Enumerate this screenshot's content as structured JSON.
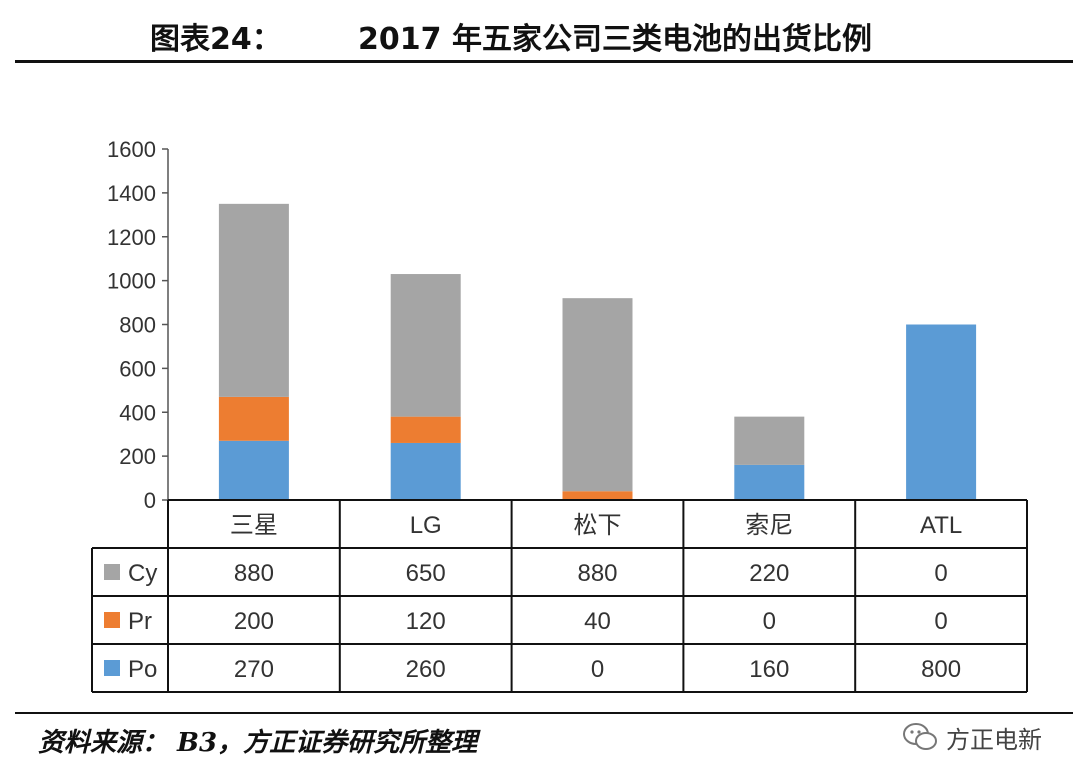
{
  "header": {
    "figure_label": "图表24：",
    "title": "2017 年五家公司三类电池的出货比例"
  },
  "footer": {
    "source": "资料来源：  B3，方正证券研究所整理",
    "brand": "方正电新"
  },
  "chart_data": {
    "type": "bar",
    "stacked": true,
    "categories": [
      "三星",
      "LG",
      "松下",
      "索尼",
      "ATL"
    ],
    "series": [
      {
        "name": "Cy",
        "values": [
          880,
          650,
          880,
          220,
          0
        ],
        "color": "#a5a5a5"
      },
      {
        "name": "Pr",
        "values": [
          200,
          120,
          40,
          0,
          0
        ],
        "color": "#ed7d31"
      },
      {
        "name": "Po",
        "values": [
          270,
          260,
          0,
          160,
          800
        ],
        "color": "#5b9bd5"
      }
    ],
    "stack_order_bottom_to_top": [
      "Po",
      "Pr",
      "Cy"
    ],
    "ylim": [
      0,
      1600
    ],
    "yticks": [
      "0",
      "200",
      "400",
      "600",
      "800",
      "1000",
      "1200",
      "1400",
      "1600"
    ],
    "data_table": true,
    "grid": false
  }
}
